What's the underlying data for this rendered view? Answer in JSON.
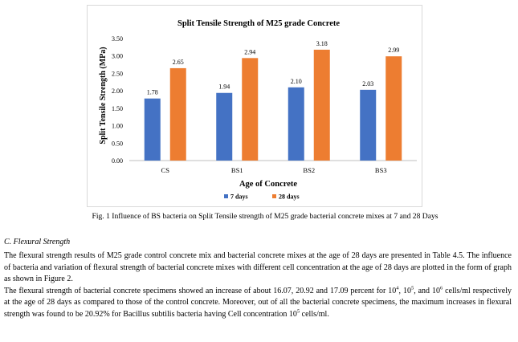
{
  "chart_data": {
    "type": "bar",
    "title": "Split Tensile Strength of M25 grade Concrete",
    "xlabel": "Age of Concrete",
    "ylabel": "Split Tensile Strength (MPa)",
    "categories": [
      "CS",
      "BS1",
      "BS2",
      "BS3"
    ],
    "series": [
      {
        "name": "7 days",
        "values": [
          1.78,
          1.94,
          2.1,
          2.03
        ],
        "labels": [
          "1.78",
          "1.94",
          "2.10",
          "2.03"
        ],
        "color": "#4472c4"
      },
      {
        "name": "28 days",
        "values": [
          2.65,
          2.94,
          3.18,
          2.99
        ],
        "labels": [
          "2.65",
          "2.94",
          "3.18",
          "2.99"
        ],
        "color": "#ed7d31"
      }
    ],
    "ylim": [
      0,
      3.5
    ],
    "yticks": [
      "0.00",
      "0.50",
      "1.00",
      "1.50",
      "2.00",
      "2.50",
      "3.00",
      "3.50"
    ],
    "grid": false,
    "legend_position": "bottom"
  },
  "caption": "Fig. 1  Influence of BS bacteria on Split Tensile strength of M25 grade bacterial concrete mixes at 7 and 28 Days",
  "section": {
    "heading": "C.  Flexural Strength",
    "paragraph_1": "The flexural strength results of M25 grade control concrete mix and bacterial concrete mixes at the age of 28 days are presented in Table 4.5. The influence of bacteria and variation of flexural strength of bacterial concrete mixes with different cell concentration at the age of 28 days are plotted in the form of graph as shown in Figure 2.",
    "p2_a": "The flexural strength of bacterial concrete specimens showed an increase of about 16.07, 20.92 and 17.09 percent for 10",
    "p2_sup1": "4",
    "p2_b": ", 10",
    "p2_sup2": "5",
    "p2_c": ", and 10",
    "p2_sup3": "6",
    "p2_d": " cells/ml respectively at the age of 28 days as compared to those of the control concrete. Moreover, out of all the bacterial concrete specimens, the maximum increases in flexural strength was found to be 20.92% for Bacillus subtilis bacteria having Cell concentration 10",
    "p2_sup4": "5",
    "p2_e": " cells/ml."
  }
}
